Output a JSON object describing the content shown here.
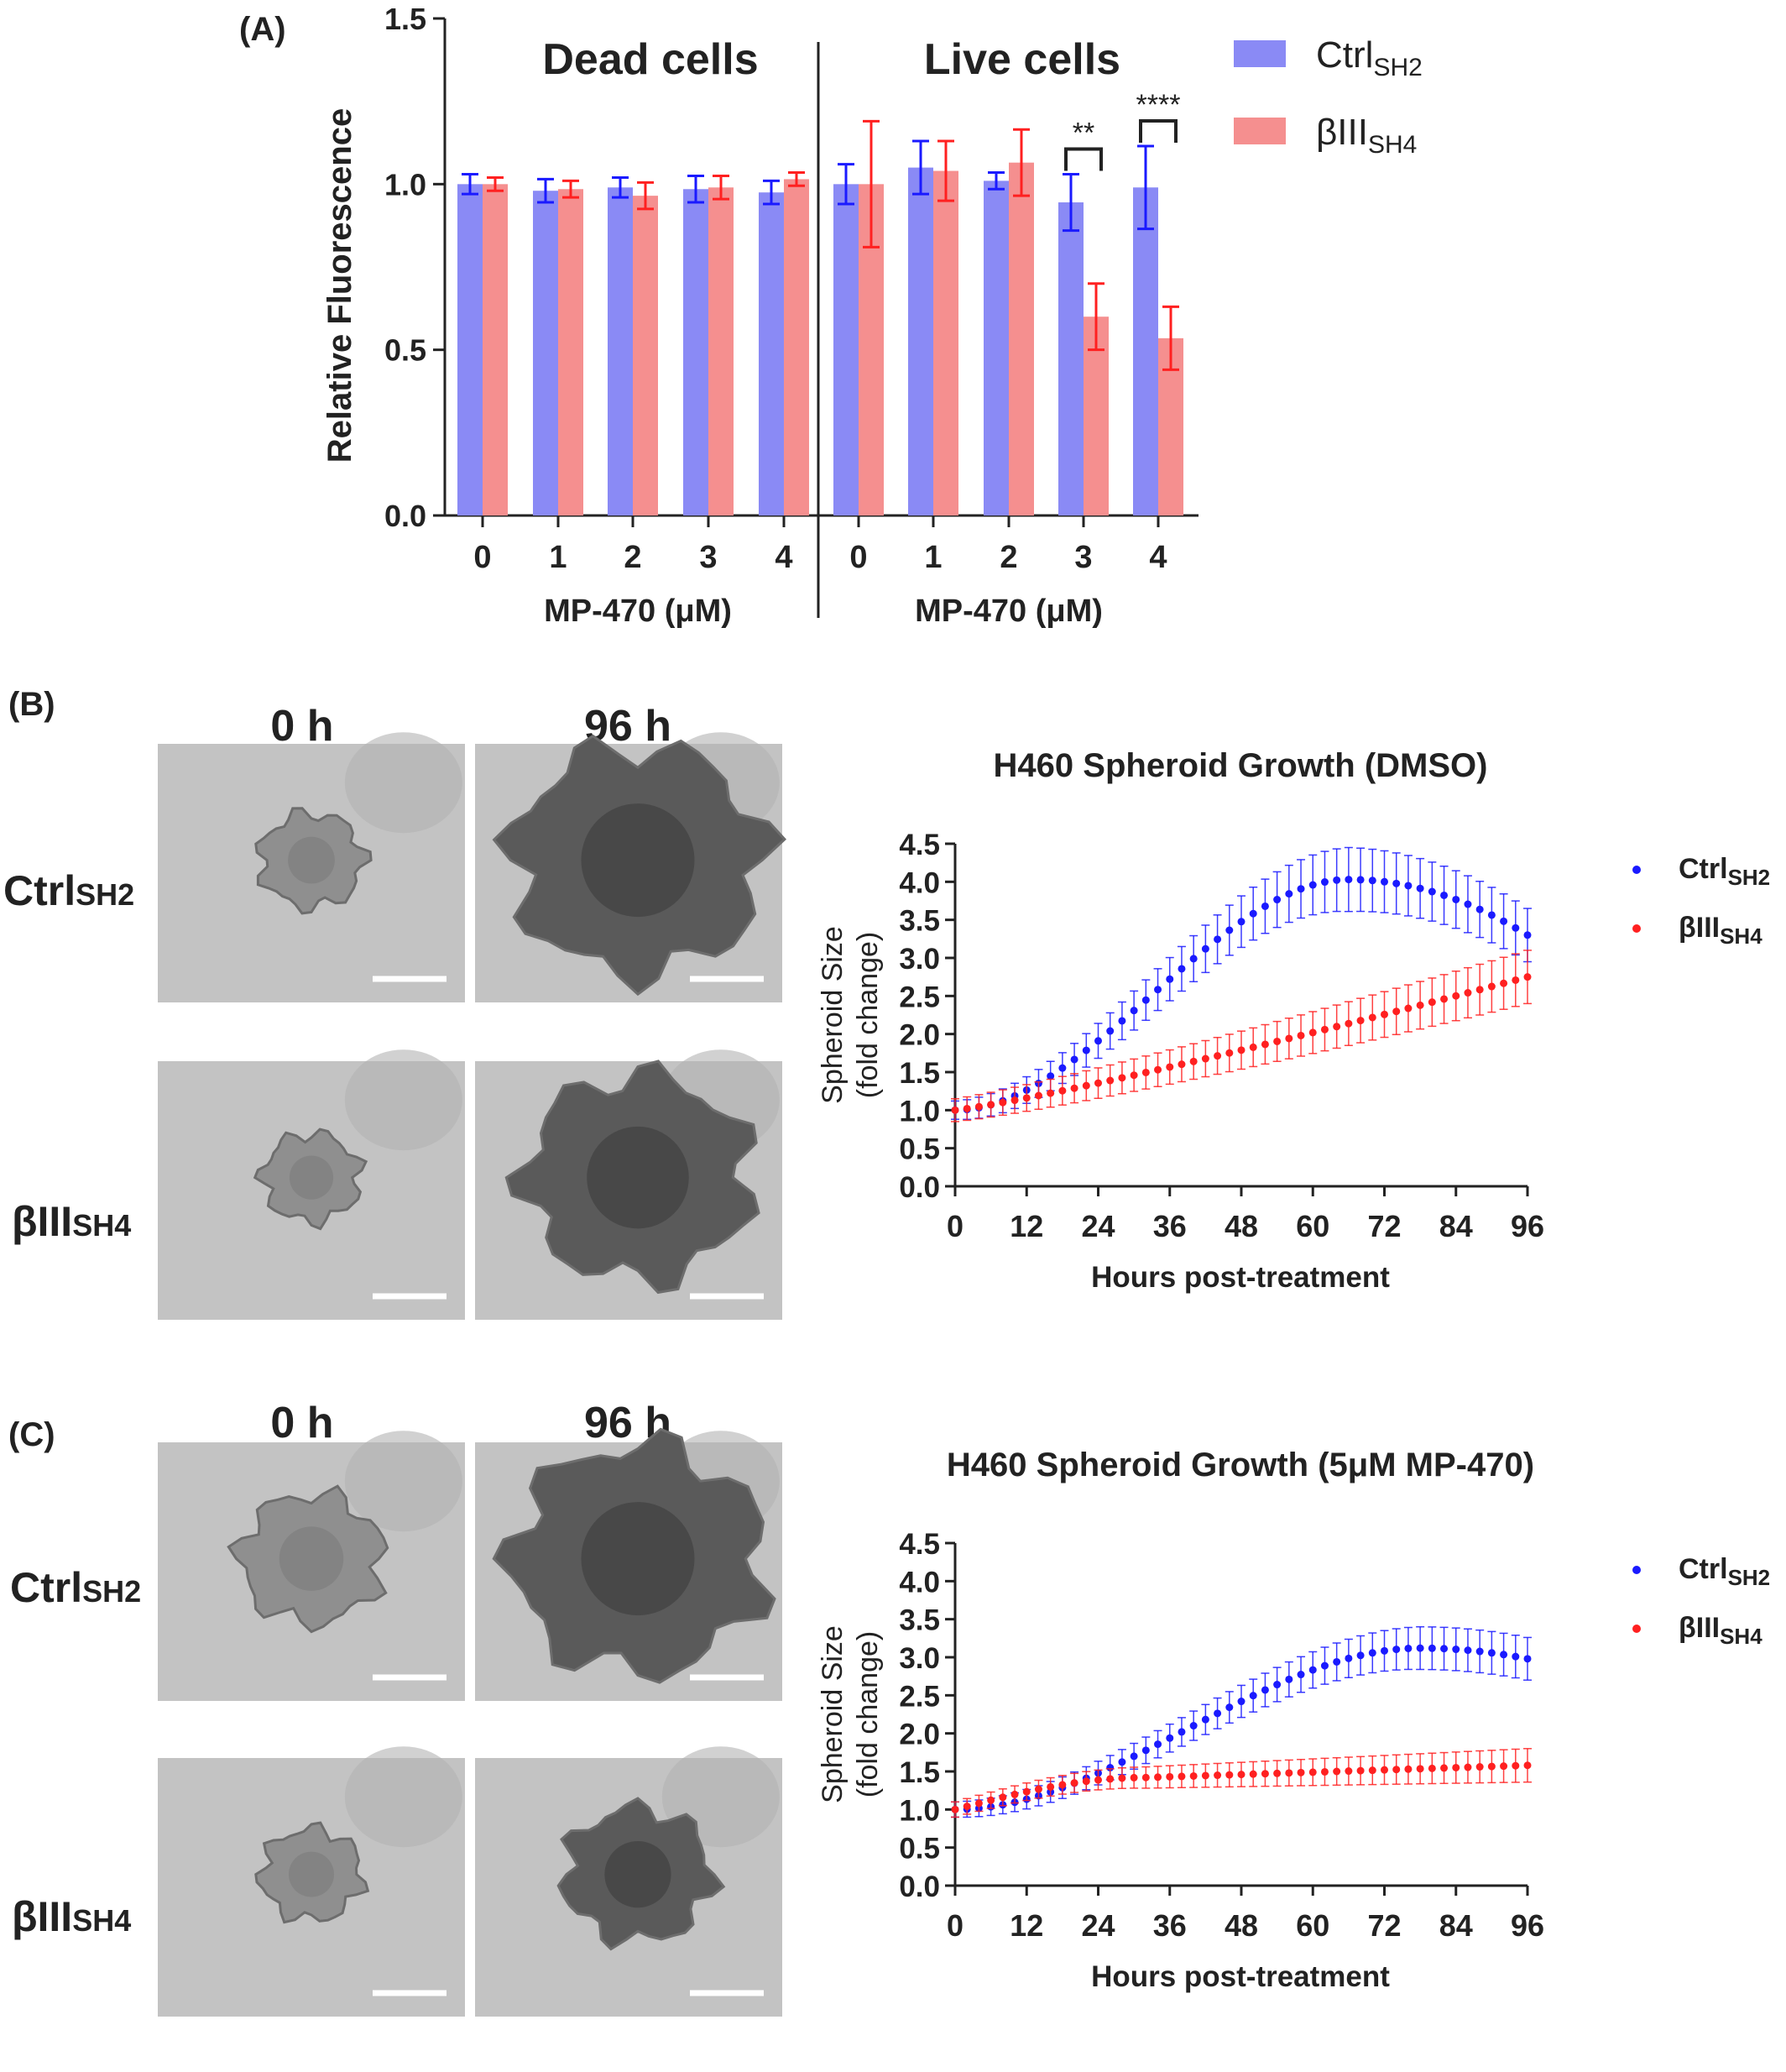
{
  "colors": {
    "blue": "#1a1aff",
    "blue_bar": "#8a8af5",
    "red": "#ff2020",
    "red_bar": "#f58f8f",
    "axis": "#222222"
  },
  "panelA": {
    "label": "(A)",
    "ylabel": "Relative Fluorescence",
    "xlabel": "MP-470 (μM)",
    "group_titles": [
      "Dead cells",
      "Live cells"
    ],
    "legend": [
      {
        "base": "Ctrl",
        "sub": "SH2"
      },
      {
        "base": "βIII",
        "sub": "SH4"
      }
    ],
    "significance": [
      "**",
      "****"
    ]
  },
  "panelB": {
    "label": "(B)",
    "time_labels": [
      "0 h",
      "96 h"
    ],
    "row_labels": [
      {
        "base": "Ctrl",
        "sub": "SH2"
      },
      {
        "base": "βIII",
        "sub": "SH4"
      }
    ]
  },
  "panelC": {
    "label": "(C)",
    "time_labels": [
      "0 h",
      "96 h"
    ],
    "row_labels": [
      {
        "base": "Ctrl",
        "sub": "SH2"
      },
      {
        "base": "βIII",
        "sub": "SH4"
      }
    ]
  },
  "chart_data": [
    {
      "type": "bar",
      "panel": "A",
      "ylabel": "Relative Fluorescence",
      "ylim": [
        0,
        1.5
      ],
      "yticks": [
        "0.0",
        "0.5",
        "1.0",
        "1.5"
      ],
      "groups": [
        {
          "title": "Dead cells",
          "xlabel": "MP-470 (μM)",
          "categories": [
            "0",
            "1",
            "2",
            "3",
            "4"
          ],
          "series": [
            {
              "name": "CtrlSH2",
              "values": [
                1.0,
                0.98,
                0.99,
                0.985,
                0.975
              ],
              "errors": [
                0.03,
                0.035,
                0.03,
                0.04,
                0.035
              ]
            },
            {
              "name": "βIIISH4",
              "values": [
                1.0,
                0.985,
                0.965,
                0.99,
                1.015
              ],
              "errors": [
                0.02,
                0.025,
                0.04,
                0.035,
                0.02
              ]
            }
          ]
        },
        {
          "title": "Live cells",
          "xlabel": "MP-470 (μM)",
          "categories": [
            "0",
            "1",
            "2",
            "3",
            "4"
          ],
          "series": [
            {
              "name": "CtrlSH2",
              "values": [
                1.0,
                1.05,
                1.01,
                0.945,
                0.99
              ],
              "errors": [
                0.06,
                0.08,
                0.025,
                0.085,
                0.125
              ]
            },
            {
              "name": "βIIISH4",
              "values": [
                1.0,
                1.04,
                1.065,
                0.6,
                0.535
              ],
              "errors": [
                0.19,
                0.09,
                0.1,
                0.1,
                0.095
              ]
            }
          ]
        }
      ],
      "annotations": [
        {
          "group": 1,
          "category": "3",
          "text": "**"
        },
        {
          "group": 1,
          "category": "4",
          "text": "****"
        }
      ]
    },
    {
      "type": "scatter",
      "panel": "B",
      "title": "H460 Spheroid Growth (DMSO)",
      "xlabel": "Hours post-treatment",
      "ylabel": "Spheroid Size (fold change)",
      "xlim": [
        0,
        96
      ],
      "ylim": [
        0,
        4.5
      ],
      "xticks": [
        "0",
        "12",
        "24",
        "36",
        "48",
        "60",
        "72",
        "84",
        "96"
      ],
      "yticks": [
        "0.0",
        "0.5",
        "1.0",
        "1.5",
        "2.0",
        "2.5",
        "3.0",
        "3.5",
        "4.0",
        "4.5"
      ],
      "legend_position": "right",
      "series": [
        {
          "name": "CtrlSH2",
          "model": "growth",
          "start": 1.0,
          "peak": 4.03,
          "peak_x": 66,
          "end": 3.3,
          "err_start": 0.12,
          "err_peak": 0.42,
          "err_end": 0.35
        },
        {
          "name": "βIIISH4",
          "model": "linear",
          "start": 1.0,
          "end": 2.75,
          "err_start": 0.15,
          "err_end": 0.35
        }
      ]
    },
    {
      "type": "scatter",
      "panel": "C",
      "title": "H460 Spheroid Growth (5μM MP-470)",
      "xlabel": "Hours post-treatment",
      "ylabel": "Spheroid Size (fold change)",
      "xlim": [
        0,
        96
      ],
      "ylim": [
        0,
        4.5
      ],
      "xticks": [
        "0",
        "12",
        "24",
        "36",
        "48",
        "60",
        "72",
        "84",
        "96"
      ],
      "yticks": [
        "0.0",
        "0.5",
        "1.0",
        "1.5",
        "2.0",
        "2.5",
        "3.0",
        "3.5",
        "4.0",
        "4.5"
      ],
      "legend_position": "right",
      "series": [
        {
          "name": "CtrlSH2",
          "model": "growth",
          "start": 1.0,
          "peak": 3.12,
          "peak_x": 78,
          "end": 2.98,
          "err_start": 0.1,
          "err_peak": 0.28,
          "err_end": 0.28
        },
        {
          "name": "βIIISH4",
          "model": "plateau",
          "start": 1.0,
          "mid": 1.42,
          "mid_x": 32,
          "end": 1.58,
          "err_start": 0.1,
          "err_end": 0.22
        }
      ]
    }
  ]
}
